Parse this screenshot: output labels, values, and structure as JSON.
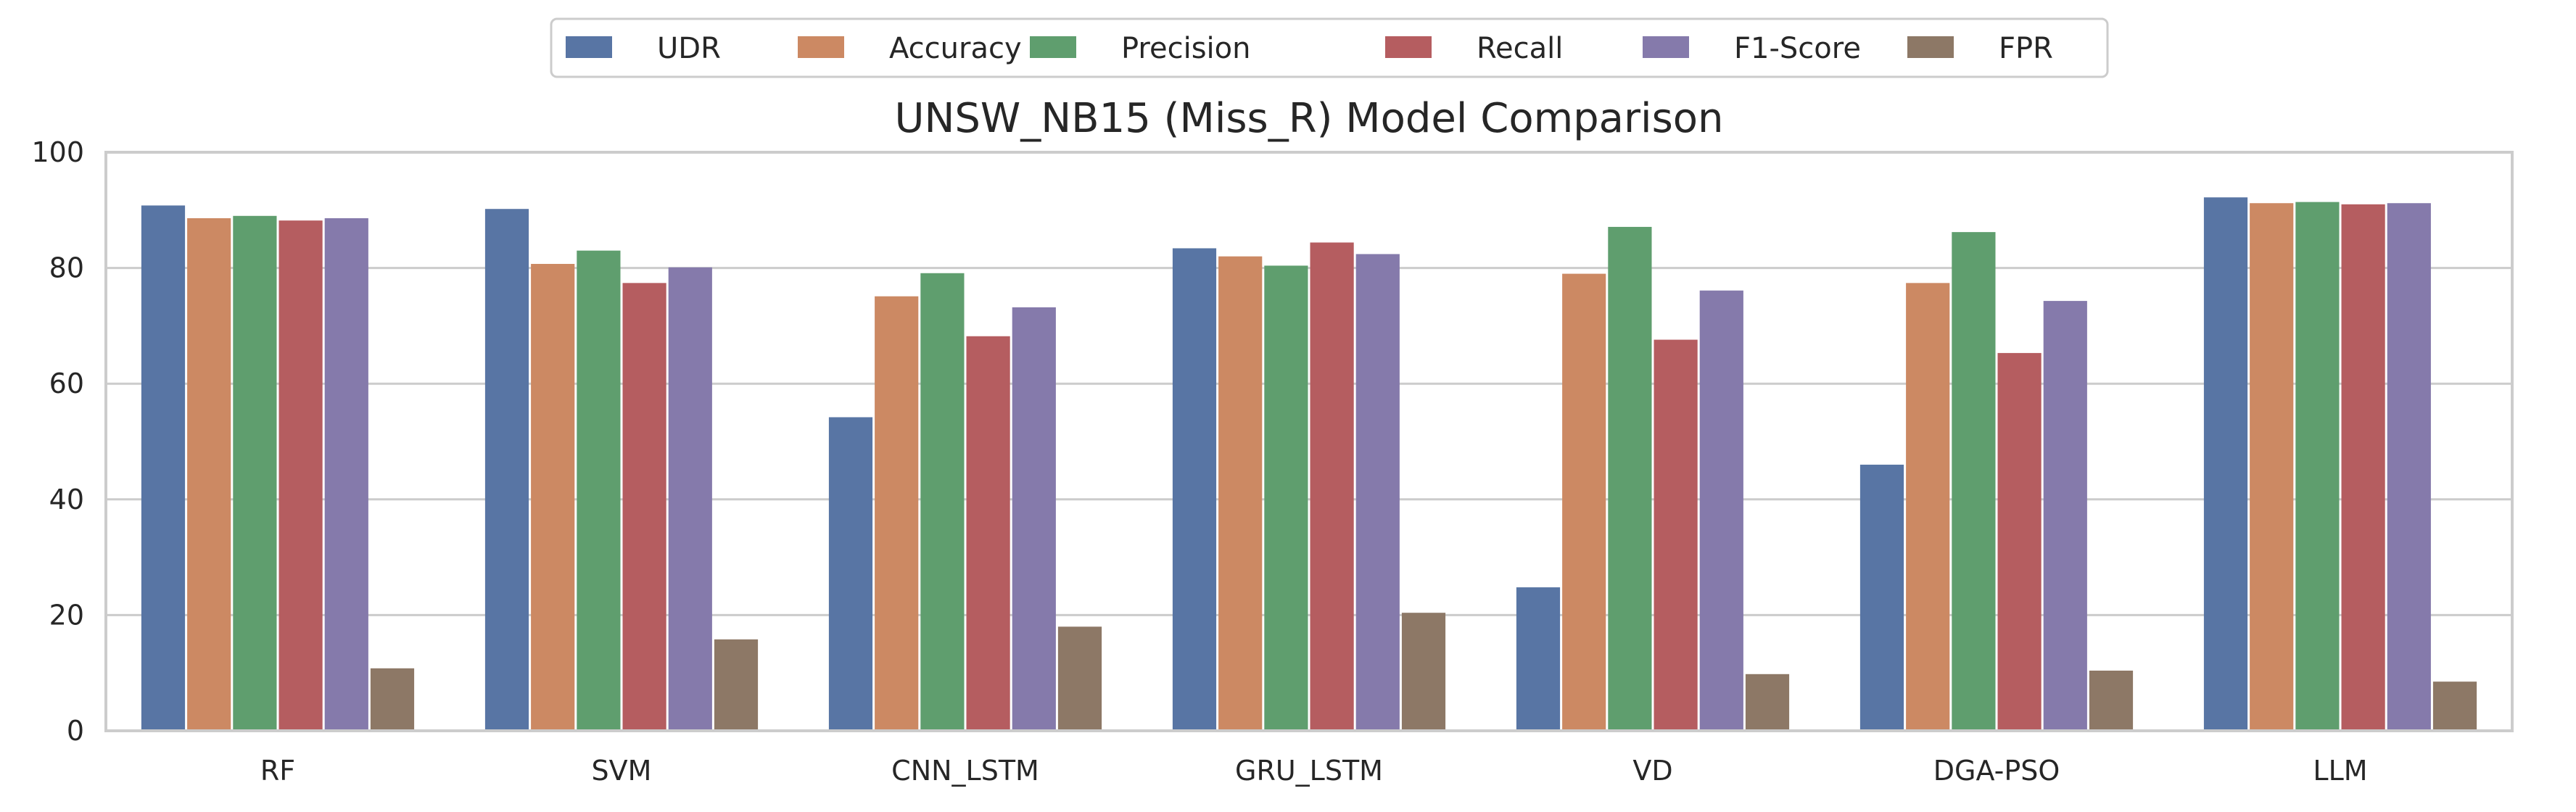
{
  "chart_data": {
    "type": "bar",
    "title": "UNSW_NB15 (Miss_R) Model Comparison",
    "xlabel": "",
    "ylabel": "",
    "ylim": [
      0,
      100
    ],
    "yticks": [
      0,
      20,
      40,
      60,
      80,
      100
    ],
    "grid": "horizontal",
    "legend_position": "top-center",
    "categories": [
      "RF",
      "SVM",
      "CNN_LSTM",
      "GRU_LSTM",
      "VD",
      "DGA-PSO",
      "LLM"
    ],
    "series": [
      {
        "name": "UDR",
        "color": "#5875a4",
        "values": [
          90.8,
          90.2,
          54.2,
          83.4,
          24.8,
          46.0,
          92.2
        ]
      },
      {
        "name": "Accuracy",
        "color": "#cc8963",
        "values": [
          88.6,
          80.7,
          75.1,
          82.0,
          79.0,
          77.4,
          91.2
        ]
      },
      {
        "name": "Precision",
        "color": "#5f9e6e",
        "values": [
          89.0,
          83.0,
          79.1,
          80.4,
          87.1,
          86.2,
          91.4
        ]
      },
      {
        "name": "Recall",
        "color": "#b55d60",
        "values": [
          88.2,
          77.4,
          68.2,
          84.4,
          67.6,
          65.3,
          91.0
        ]
      },
      {
        "name": "F1-Score",
        "color": "#857aab",
        "values": [
          88.6,
          80.1,
          73.2,
          82.4,
          76.1,
          74.3,
          91.2
        ]
      },
      {
        "name": "FPR",
        "color": "#8d7866",
        "values": [
          10.8,
          15.8,
          18.0,
          20.4,
          9.8,
          10.4,
          8.5
        ]
      }
    ]
  }
}
